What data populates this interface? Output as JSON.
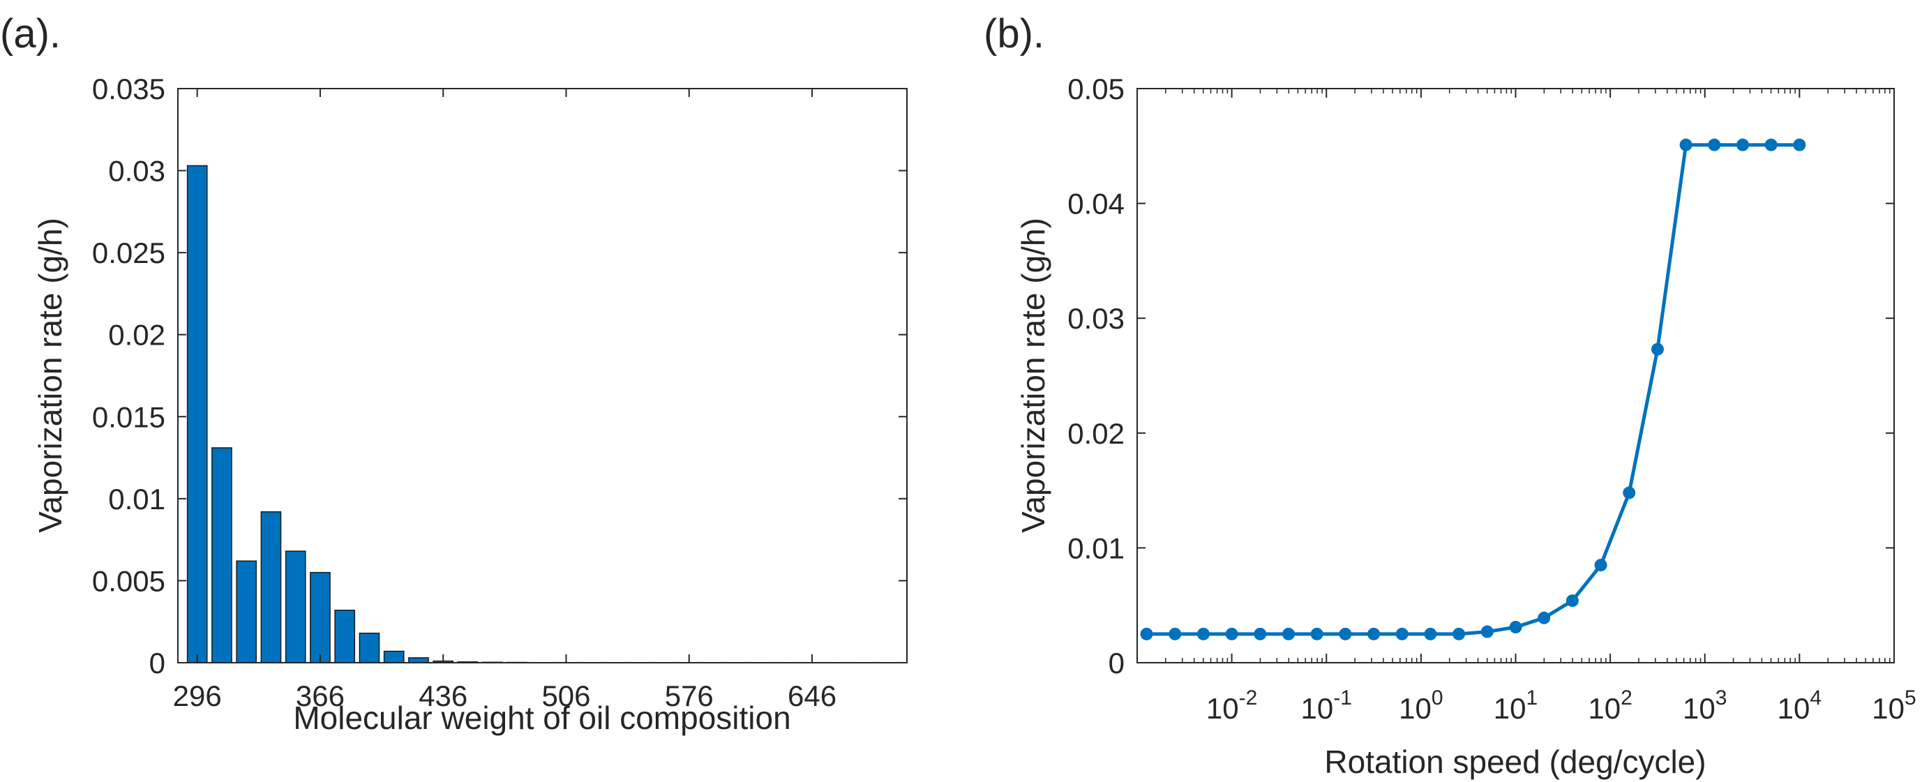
{
  "chart_data": [
    {
      "panel_label": "(a).",
      "type": "bar",
      "xlabel": "Molecular weight of oil composition",
      "ylabel": "Vaporization rate (g/h)",
      "x_tick_labels": [
        "296",
        "366",
        "436",
        "506",
        "576",
        "646"
      ],
      "x": [
        296,
        310,
        324,
        338,
        352,
        366,
        380,
        394,
        408,
        422,
        436,
        450,
        464,
        478,
        492,
        506,
        520,
        534,
        548,
        562,
        576,
        590,
        604,
        618,
        632,
        646,
        660,
        674,
        688
      ],
      "values": [
        0.0303,
        0.0131,
        0.0062,
        0.0092,
        0.0068,
        0.0055,
        0.0032,
        0.0018,
        0.0007,
        0.0003,
        0.0001,
        5e-05,
        3e-05,
        2e-05,
        1e-05,
        1e-05,
        1e-05,
        1e-05,
        1e-05,
        1e-05,
        1e-05,
        1e-05,
        1e-05,
        1e-05,
        1e-05,
        1e-05,
        1e-05,
        1e-05,
        1e-05
      ],
      "xlim": [
        285,
        700
      ],
      "ylim": [
        0,
        0.035
      ],
      "y_tick_labels": [
        "0",
        "0.005",
        "0.01",
        "0.015",
        "0.02",
        "0.025",
        "0.03",
        "0.035"
      ],
      "y_ticks": [
        0,
        0.005,
        0.01,
        0.015,
        0.02,
        0.025,
        0.03,
        0.035
      ],
      "color": "#0072BD"
    },
    {
      "panel_label": "(b).",
      "type": "line",
      "xscale": "log",
      "xlabel": "Rotation speed (deg/cycle)",
      "ylabel": "Vaporization rate (g/h)",
      "x_tick_mantissa": "10",
      "x_tick_exponents": [
        "-2",
        "-1",
        "0",
        "1",
        "2",
        "3",
        "4",
        "5"
      ],
      "x_tick_log_values": [
        -2,
        -1,
        0,
        1,
        2,
        3,
        4,
        5
      ],
      "x_log10": [
        -2.9,
        -2.6,
        -2.3,
        -2.0,
        -1.7,
        -1.4,
        -1.1,
        -0.8,
        -0.5,
        -0.2,
        0.1,
        0.4,
        0.7,
        1.0,
        1.3,
        1.6,
        1.9,
        2.2,
        2.5,
        2.8,
        3.1,
        3.4,
        3.7,
        4.0
      ],
      "values": [
        0.0025,
        0.0025,
        0.0025,
        0.0025,
        0.0025,
        0.0025,
        0.0025,
        0.0025,
        0.0025,
        0.0025,
        0.0025,
        0.0025,
        0.0027,
        0.0031,
        0.0039,
        0.0054,
        0.0085,
        0.0148,
        0.0273,
        0.0451,
        0.0451,
        0.0451,
        0.0451,
        0.0451
      ],
      "xlim_log10": [
        -3,
        5
      ],
      "ylim": [
        0,
        0.05
      ],
      "y_tick_labels": [
        "0",
        "0.01",
        "0.02",
        "0.03",
        "0.04",
        "0.05"
      ],
      "y_ticks": [
        0,
        0.01,
        0.02,
        0.03,
        0.04,
        0.05
      ],
      "color": "#0072BD"
    }
  ]
}
